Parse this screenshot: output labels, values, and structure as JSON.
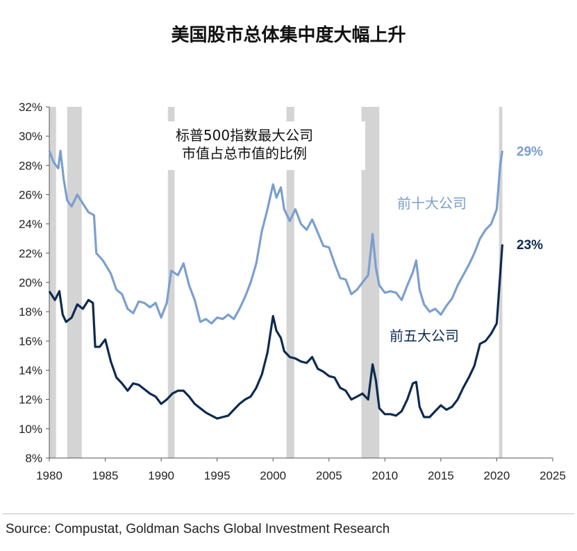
{
  "chart_data": {
    "type": "line",
    "title": "美国股市总体集中度大幅上升",
    "annotation": [
      "标普500指数最大公司",
      "市值占总市值的比例"
    ],
    "xlim": [
      1980,
      2025
    ],
    "ylim": [
      8,
      32
    ],
    "x_ticks": [
      "1980",
      "1985",
      "1990",
      "1995",
      "2000",
      "2005",
      "2010",
      "2015",
      "2020",
      "2025"
    ],
    "y_ticks": [
      "8%",
      "10%",
      "12%",
      "14%",
      "16%",
      "18%",
      "20%",
      "22%",
      "24%",
      "26%",
      "28%",
      "30%",
      "32%"
    ],
    "recessions": [
      [
        1980.0,
        1980.6
      ],
      [
        1981.6,
        1982.9
      ],
      [
        1990.6,
        1991.2
      ],
      [
        2001.2,
        2001.9
      ],
      [
        2007.9,
        2009.5
      ],
      [
        2020.2,
        2020.5
      ]
    ],
    "series": [
      {
        "name": "前十大公司",
        "color": "#7a9fcf",
        "end_label": "29%",
        "points": [
          [
            1980.0,
            29.0
          ],
          [
            1980.4,
            28.2
          ],
          [
            1980.8,
            27.8
          ],
          [
            1981.0,
            29.0
          ],
          [
            1981.3,
            27.0
          ],
          [
            1981.6,
            25.6
          ],
          [
            1982.0,
            25.2
          ],
          [
            1982.5,
            26.0
          ],
          [
            1983.0,
            25.4
          ],
          [
            1983.5,
            24.8
          ],
          [
            1984.0,
            24.6
          ],
          [
            1984.2,
            22.0
          ],
          [
            1984.8,
            21.5
          ],
          [
            1985.5,
            20.6
          ],
          [
            1986.0,
            19.5
          ],
          [
            1986.5,
            19.2
          ],
          [
            1987.0,
            18.2
          ],
          [
            1987.5,
            17.9
          ],
          [
            1988.0,
            18.7
          ],
          [
            1988.5,
            18.6
          ],
          [
            1989.0,
            18.3
          ],
          [
            1989.5,
            18.6
          ],
          [
            1990.0,
            17.6
          ],
          [
            1990.5,
            18.6
          ],
          [
            1990.9,
            20.8
          ],
          [
            1991.5,
            20.5
          ],
          [
            1992.0,
            21.3
          ],
          [
            1992.5,
            19.8
          ],
          [
            1993.0,
            18.8
          ],
          [
            1993.5,
            17.3
          ],
          [
            1994.0,
            17.5
          ],
          [
            1994.5,
            17.2
          ],
          [
            1995.0,
            17.6
          ],
          [
            1995.5,
            17.5
          ],
          [
            1996.0,
            17.8
          ],
          [
            1996.5,
            17.5
          ],
          [
            1997.0,
            18.2
          ],
          [
            1997.5,
            19.0
          ],
          [
            1998.0,
            20.0
          ],
          [
            1998.5,
            21.3
          ],
          [
            1999.0,
            23.5
          ],
          [
            1999.5,
            25.0
          ],
          [
            2000.0,
            26.7
          ],
          [
            2000.3,
            25.8
          ],
          [
            2000.7,
            26.5
          ],
          [
            2001.0,
            25.0
          ],
          [
            2001.5,
            24.2
          ],
          [
            2002.0,
            25.0
          ],
          [
            2002.5,
            24.0
          ],
          [
            2003.0,
            23.6
          ],
          [
            2003.5,
            24.3
          ],
          [
            2004.0,
            23.4
          ],
          [
            2004.5,
            22.5
          ],
          [
            2005.0,
            22.4
          ],
          [
            2005.5,
            21.3
          ],
          [
            2006.0,
            20.3
          ],
          [
            2006.5,
            20.2
          ],
          [
            2007.0,
            19.2
          ],
          [
            2007.5,
            19.5
          ],
          [
            2008.0,
            20.0
          ],
          [
            2008.5,
            20.5
          ],
          [
            2008.9,
            23.3
          ],
          [
            2009.2,
            21.0
          ],
          [
            2009.5,
            19.8
          ],
          [
            2010.0,
            19.3
          ],
          [
            2010.5,
            19.4
          ],
          [
            2011.0,
            19.3
          ],
          [
            2011.5,
            18.8
          ],
          [
            2012.0,
            19.8
          ],
          [
            2012.5,
            20.7
          ],
          [
            2012.8,
            21.5
          ],
          [
            2013.1,
            19.5
          ],
          [
            2013.5,
            18.5
          ],
          [
            2014.0,
            18.0
          ],
          [
            2014.5,
            18.2
          ],
          [
            2015.0,
            17.8
          ],
          [
            2015.5,
            18.4
          ],
          [
            2016.0,
            18.9
          ],
          [
            2016.5,
            19.8
          ],
          [
            2017.0,
            20.5
          ],
          [
            2017.5,
            21.2
          ],
          [
            2018.0,
            22.0
          ],
          [
            2018.5,
            23.0
          ],
          [
            2019.0,
            23.6
          ],
          [
            2019.5,
            24.0
          ],
          [
            2020.0,
            25.0
          ],
          [
            2020.3,
            28.0
          ],
          [
            2020.5,
            29.0
          ]
        ]
      },
      {
        "name": "前五大公司",
        "color": "#0d2a50",
        "end_label": "23%",
        "points": [
          [
            1980.0,
            19.4
          ],
          [
            1980.5,
            18.8
          ],
          [
            1980.9,
            19.4
          ],
          [
            1981.2,
            17.8
          ],
          [
            1981.5,
            17.3
          ],
          [
            1982.0,
            17.6
          ],
          [
            1982.5,
            18.5
          ],
          [
            1983.0,
            18.2
          ],
          [
            1983.5,
            18.8
          ],
          [
            1983.9,
            18.6
          ],
          [
            1984.1,
            15.6
          ],
          [
            1984.5,
            15.6
          ],
          [
            1985.0,
            16.1
          ],
          [
            1985.5,
            14.6
          ],
          [
            1986.0,
            13.5
          ],
          [
            1986.5,
            13.1
          ],
          [
            1987.0,
            12.6
          ],
          [
            1987.5,
            13.1
          ],
          [
            1988.0,
            13.0
          ],
          [
            1988.5,
            12.7
          ],
          [
            1989.0,
            12.4
          ],
          [
            1989.5,
            12.2
          ],
          [
            1990.0,
            11.7
          ],
          [
            1990.5,
            12.0
          ],
          [
            1991.0,
            12.4
          ],
          [
            1991.5,
            12.6
          ],
          [
            1992.0,
            12.6
          ],
          [
            1992.5,
            12.2
          ],
          [
            1993.0,
            11.7
          ],
          [
            1993.5,
            11.4
          ],
          [
            1994.0,
            11.1
          ],
          [
            1994.5,
            10.9
          ],
          [
            1995.0,
            10.7
          ],
          [
            1995.5,
            10.8
          ],
          [
            1996.0,
            10.9
          ],
          [
            1996.5,
            11.3
          ],
          [
            1997.0,
            11.7
          ],
          [
            1997.5,
            12.0
          ],
          [
            1998.0,
            12.2
          ],
          [
            1998.5,
            12.8
          ],
          [
            1999.0,
            13.7
          ],
          [
            1999.5,
            15.2
          ],
          [
            2000.0,
            17.7
          ],
          [
            2000.3,
            16.7
          ],
          [
            2000.7,
            16.2
          ],
          [
            2001.0,
            15.3
          ],
          [
            2001.5,
            14.9
          ],
          [
            2002.0,
            14.8
          ],
          [
            2002.5,
            14.6
          ],
          [
            2003.0,
            14.5
          ],
          [
            2003.5,
            14.9
          ],
          [
            2004.0,
            14.1
          ],
          [
            2004.5,
            13.9
          ],
          [
            2005.0,
            13.6
          ],
          [
            2005.5,
            13.5
          ],
          [
            2006.0,
            12.8
          ],
          [
            2006.5,
            12.6
          ],
          [
            2007.0,
            12.0
          ],
          [
            2007.5,
            12.2
          ],
          [
            2008.0,
            12.4
          ],
          [
            2008.5,
            12.0
          ],
          [
            2008.9,
            14.4
          ],
          [
            2009.2,
            13.3
          ],
          [
            2009.5,
            11.4
          ],
          [
            2010.0,
            11.0
          ],
          [
            2010.5,
            11.0
          ],
          [
            2011.0,
            10.9
          ],
          [
            2011.5,
            11.2
          ],
          [
            2012.0,
            12.0
          ],
          [
            2012.5,
            13.1
          ],
          [
            2012.8,
            13.2
          ],
          [
            2013.1,
            11.5
          ],
          [
            2013.5,
            10.8
          ],
          [
            2014.0,
            10.8
          ],
          [
            2014.5,
            11.2
          ],
          [
            2015.0,
            11.6
          ],
          [
            2015.5,
            11.3
          ],
          [
            2016.0,
            11.5
          ],
          [
            2016.5,
            12.0
          ],
          [
            2017.0,
            12.8
          ],
          [
            2017.5,
            13.5
          ],
          [
            2018.0,
            14.3
          ],
          [
            2018.5,
            15.8
          ],
          [
            2019.0,
            16.0
          ],
          [
            2019.5,
            16.5
          ],
          [
            2020.0,
            17.2
          ],
          [
            2020.3,
            20.5
          ],
          [
            2020.5,
            22.6
          ]
        ]
      }
    ],
    "series_labels": [
      "前十大公司",
      "前五大公司"
    ]
  },
  "source": "Source: Compustat, Goldman Sachs Global Investment Research"
}
